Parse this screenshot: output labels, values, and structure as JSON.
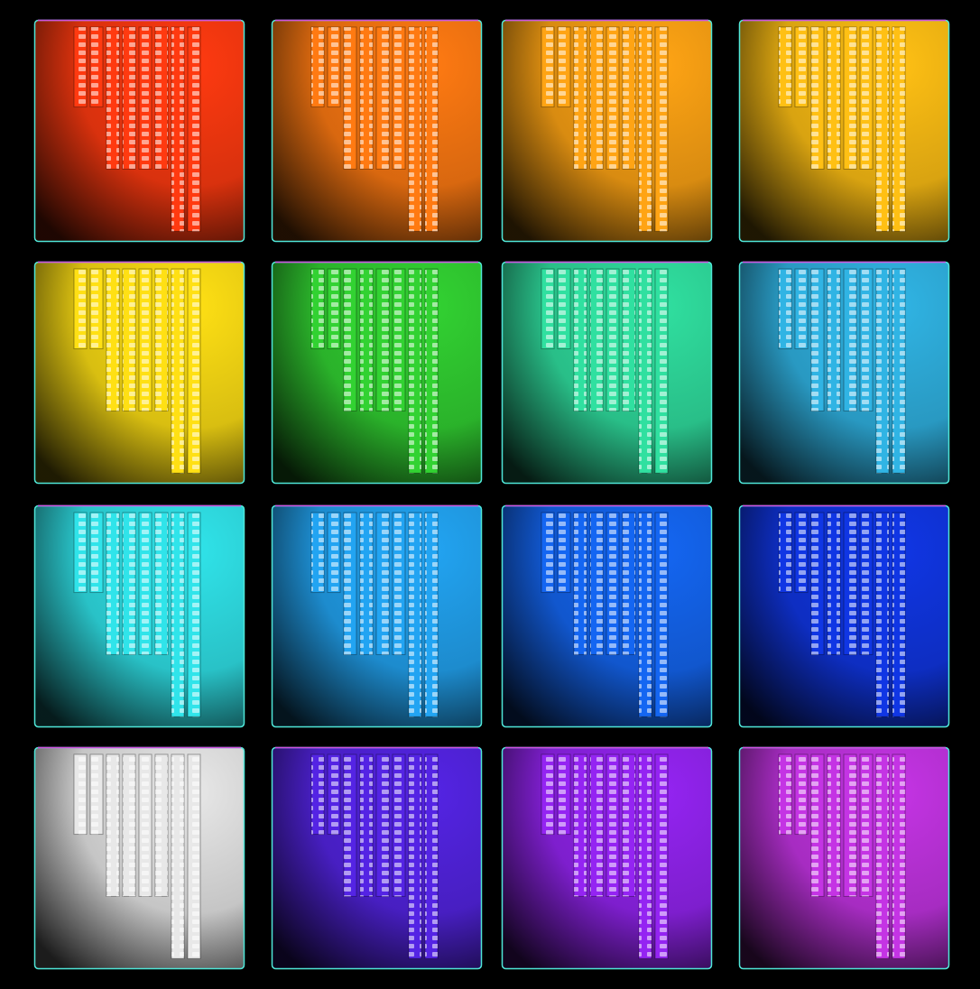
{
  "tiles": [
    {
      "color": "#ff3a10"
    },
    {
      "color": "#ff7a12"
    },
    {
      "color": "#ffa414"
    },
    {
      "color": "#ffc014"
    },
    {
      "color": "#ffe014"
    },
    {
      "color": "#32d232"
    },
    {
      "color": "#30e0a0"
    },
    {
      "color": "#30b4e4"
    },
    {
      "color": "#30e4ea"
    },
    {
      "color": "#22a4f2"
    },
    {
      "color": "#1466f2"
    },
    {
      "color": "#1036e4"
    },
    {
      "color": "#e8e8e8"
    },
    {
      "color": "#5424e4"
    },
    {
      "color": "#9424f2"
    },
    {
      "color": "#c434e4"
    }
  ]
}
